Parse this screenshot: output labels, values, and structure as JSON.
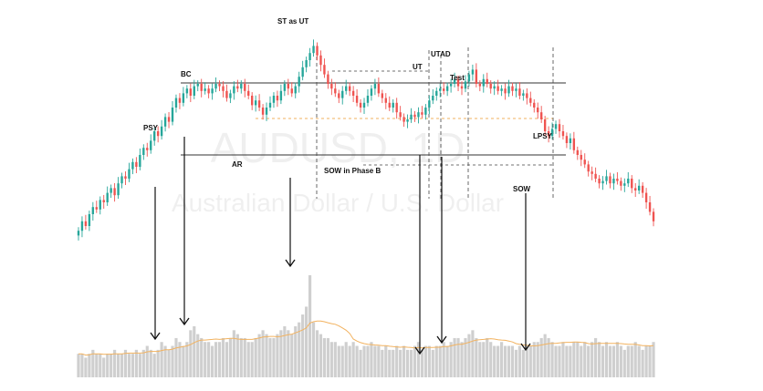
{
  "chart_data": {
    "type": "candlestick",
    "watermark": {
      "symbol": "AUDUSD, 1D",
      "name": "Australian Dollar / U.S. Dollar"
    },
    "colors": {
      "up": "#26a69a",
      "down": "#ef5350",
      "volume": "#cfcfcf",
      "volume_ma": "#f2b25f",
      "range_lines": "#333333",
      "midline": "#f2b25f",
      "arrows": "#111111",
      "dashed": "#444444"
    },
    "price_scale": {
      "ymin": 0,
      "ymax": 100
    },
    "candle_closes": [
      18,
      22,
      20,
      25,
      28,
      27,
      31,
      30,
      34,
      36,
      33,
      38,
      41,
      40,
      44,
      47,
      45,
      50,
      53,
      52,
      56,
      60,
      58,
      62,
      66,
      64,
      70,
      74,
      72,
      76,
      78,
      75,
      79,
      80,
      77,
      78,
      76,
      78,
      80,
      79,
      77,
      74,
      76,
      79,
      78,
      80,
      77,
      75,
      71,
      73,
      70,
      67,
      70,
      72,
      75,
      73,
      77,
      80,
      78,
      76,
      79,
      83,
      87,
      90,
      93,
      96,
      92,
      88,
      84,
      80,
      78,
      76,
      74,
      77,
      79,
      77,
      75,
      72,
      70,
      72,
      75,
      78,
      80,
      76,
      74,
      72,
      70,
      72,
      68,
      66,
      64,
      65,
      67,
      66,
      68,
      67,
      70,
      73,
      75,
      77,
      78,
      77,
      79,
      80,
      82,
      79,
      78,
      81,
      84,
      86,
      80,
      79,
      82,
      80,
      78,
      79,
      77,
      78,
      76,
      79,
      77,
      78,
      75,
      76,
      74,
      72,
      70,
      68,
      65,
      60,
      58,
      61,
      63,
      60,
      58,
      55,
      57,
      52,
      50,
      48,
      46,
      43,
      42,
      40,
      38,
      39,
      41,
      38,
      40,
      39,
      37,
      38,
      40,
      36,
      35,
      37,
      34,
      30,
      26,
      22
    ],
    "volumes": [
      6,
      6,
      5,
      6,
      7,
      6,
      6,
      5,
      6,
      6,
      7,
      6,
      6,
      7,
      6,
      6,
      7,
      6,
      7,
      8,
      7,
      6,
      7,
      9,
      8,
      7,
      8,
      10,
      9,
      8,
      9,
      12,
      13,
      11,
      10,
      9,
      9,
      8,
      9,
      9,
      10,
      9,
      10,
      12,
      11,
      10,
      10,
      9,
      9,
      10,
      11,
      12,
      11,
      10,
      10,
      11,
      12,
      13,
      12,
      11,
      13,
      14,
      16,
      18,
      26,
      14,
      12,
      11,
      10,
      10,
      9,
      9,
      8,
      8,
      9,
      8,
      9,
      8,
      7,
      8,
      8,
      9,
      8,
      8,
      7,
      8,
      7,
      7,
      8,
      7,
      8,
      7,
      7,
      8,
      9,
      7,
      8,
      8,
      7,
      8,
      8,
      9,
      8,
      9,
      10,
      10,
      9,
      10,
      11,
      12,
      10,
      9,
      9,
      10,
      9,
      8,
      8,
      9,
      8,
      8,
      8,
      7,
      8,
      7,
      8,
      8,
      9,
      9,
      10,
      11,
      10,
      9,
      8,
      8,
      9,
      8,
      8,
      9,
      9,
      8,
      9,
      8,
      9,
      10,
      9,
      8,
      9,
      8,
      8,
      9,
      8,
      7,
      8,
      8,
      9,
      8,
      7,
      8,
      8,
      9
    ],
    "annotations": [
      {
        "label": "PSY"
      },
      {
        "label": "BC"
      },
      {
        "label": "AR"
      },
      {
        "label": "ST as UT"
      },
      {
        "label": "SOW in Phase B"
      },
      {
        "label": "UT"
      },
      {
        "label": "UTAD"
      },
      {
        "label": "Test"
      },
      {
        "label": "SOW"
      },
      {
        "label": "LPSY"
      }
    ]
  }
}
